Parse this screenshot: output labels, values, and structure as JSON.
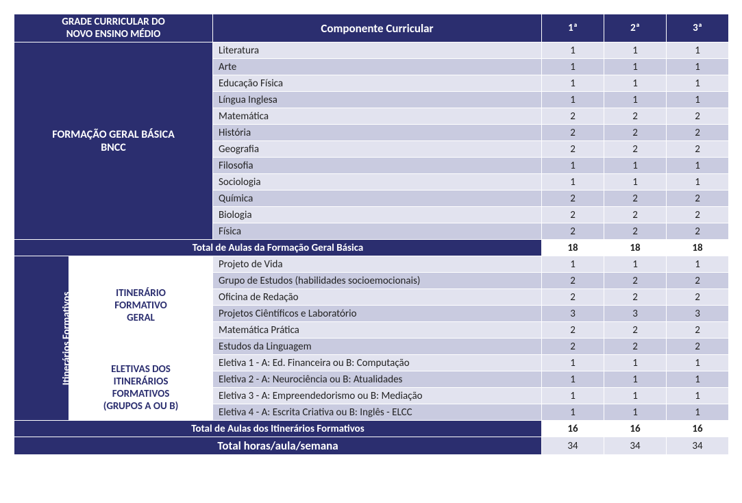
{
  "header": {
    "title_l1": "GRADE CURRICULAR DO",
    "title_l2": "NOVO ENSINO MÉDIO",
    "comp": "Componente Curricular",
    "y1": "1ª",
    "y2": "2ª",
    "y3": "3ª"
  },
  "section1": {
    "label_l1": "FORMAÇÃO GERAL BÁSICA",
    "label_l2": "BNCC",
    "rows": [
      {
        "comp": "Literatura",
        "v": [
          1,
          1,
          1
        ]
      },
      {
        "comp": "Arte",
        "v": [
          1,
          1,
          1
        ]
      },
      {
        "comp": "Educação Física",
        "v": [
          1,
          1,
          1
        ]
      },
      {
        "comp": "Língua Inglesa",
        "v": [
          1,
          1,
          1
        ]
      },
      {
        "comp": "Matemática",
        "v": [
          2,
          2,
          2
        ]
      },
      {
        "comp": "História",
        "v": [
          2,
          2,
          2
        ]
      },
      {
        "comp": "Geografia",
        "v": [
          2,
          2,
          2
        ]
      },
      {
        "comp": "Filosofia",
        "v": [
          1,
          1,
          1
        ]
      },
      {
        "comp": "Sociologia",
        "v": [
          1,
          1,
          1
        ]
      },
      {
        "comp": "Química",
        "v": [
          2,
          2,
          2
        ]
      },
      {
        "comp": "Biologia",
        "v": [
          2,
          2,
          2
        ]
      },
      {
        "comp": "Física",
        "v": [
          2,
          2,
          2
        ]
      }
    ],
    "total_label": "Total de Aulas da Formação Geral Básica",
    "total": [
      18,
      18,
      18
    ]
  },
  "section2": {
    "rot_label": "Itinerários Formativos",
    "sub1_l1": "ITINERÁRIO",
    "sub1_l2": "FORMATIVO",
    "sub1_l3": "GERAL",
    "rows1": [
      {
        "comp": "Projeto de Vida",
        "v": [
          1,
          1,
          1
        ]
      },
      {
        "comp": "Grupo de Estudos (habilidades socioemocionais)",
        "v": [
          2,
          2,
          2
        ]
      },
      {
        "comp": "Oficina de Redação",
        "v": [
          2,
          2,
          2
        ]
      },
      {
        "comp": "Projetos Ciêntíficos e Laboratório",
        "v": [
          3,
          3,
          3
        ]
      },
      {
        "comp": "Matemática Prática",
        "v": [
          2,
          2,
          2
        ]
      },
      {
        "comp": "Estudos da Linguagem",
        "v": [
          2,
          2,
          2
        ]
      }
    ],
    "sub2_l1": "ELETIVAS DOS",
    "sub2_l2": "ITINERÁRIOS",
    "sub2_l3": "FORMATIVOS",
    "sub2_l4": "(GRUPOS A OU B)",
    "rows2": [
      {
        "comp": "Eletiva 1 - A: Ed. Financeira ou B: Computação",
        "v": [
          1,
          1,
          1
        ]
      },
      {
        "comp": "Eletiva 2 - A: Neurociência ou B: Atualidades",
        "v": [
          1,
          1,
          1
        ]
      },
      {
        "comp": "Eletiva 3 - A: Empreendedorismo ou B: Mediação",
        "v": [
          1,
          1,
          1
        ]
      },
      {
        "comp": "Eletiva 4 - A: Escrita Criativa ou B: Inglês - ELCC",
        "v": [
          1,
          1,
          1
        ]
      }
    ],
    "total_label": "Total de Aulas dos Itinerários Formativos",
    "total": [
      16,
      16,
      16
    ]
  },
  "final": {
    "label": "Total horas/aula/semana",
    "v": [
      34,
      34,
      34
    ]
  },
  "style": {
    "header_bg": "#2b2e6f",
    "row_light": "#e2e3ef",
    "row_dark": "#c9cbe0",
    "border": "#ffffff"
  }
}
